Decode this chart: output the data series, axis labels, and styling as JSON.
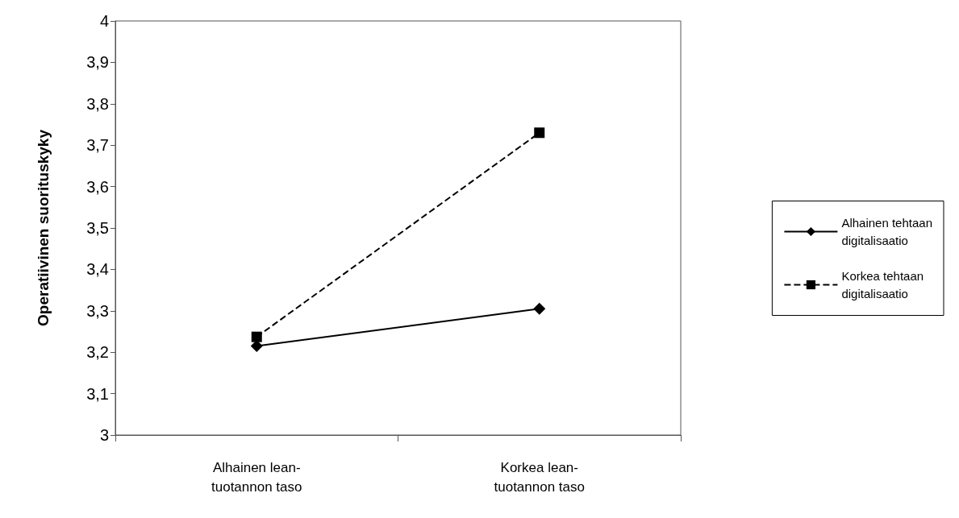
{
  "chart_data": {
    "type": "line",
    "ylabel": "Operatiivinen suorituskyky",
    "categories": [
      "Alhainen lean-\ntuotannon taso",
      "Korkea lean-\ntuotannon taso"
    ],
    "series": [
      {
        "name": "Alhainen tehtaan\ndigitalisaatio",
        "color": "#000000",
        "values": [
          3.215,
          3.305
        ],
        "marker": "diamond",
        "line_style": "solid"
      },
      {
        "name": "Korkea tehtaan\ndigitalisaatio",
        "color": "#000000",
        "values": [
          3.237,
          3.73
        ],
        "marker": "square",
        "line_style": "dashed"
      }
    ],
    "ylim": [
      3,
      4
    ],
    "yticks": [
      3,
      {
        "value": 3.1,
        "label": "3,1"
      },
      {
        "value": 3.2,
        "label": "3,2"
      },
      {
        "value": 3.3,
        "label": "3,3"
      },
      {
        "value": 3.4,
        "label": "3,4"
      },
      {
        "value": 3.5,
        "label": "3,5"
      },
      {
        "value": 3.6,
        "label": "3,6"
      },
      {
        "value": 3.7,
        "label": "3,7"
      },
      {
        "value": 3.8,
        "label": "3,8"
      },
      {
        "value": 3.9,
        "label": "3,9"
      },
      4
    ],
    "grid": false,
    "legend": "right"
  }
}
